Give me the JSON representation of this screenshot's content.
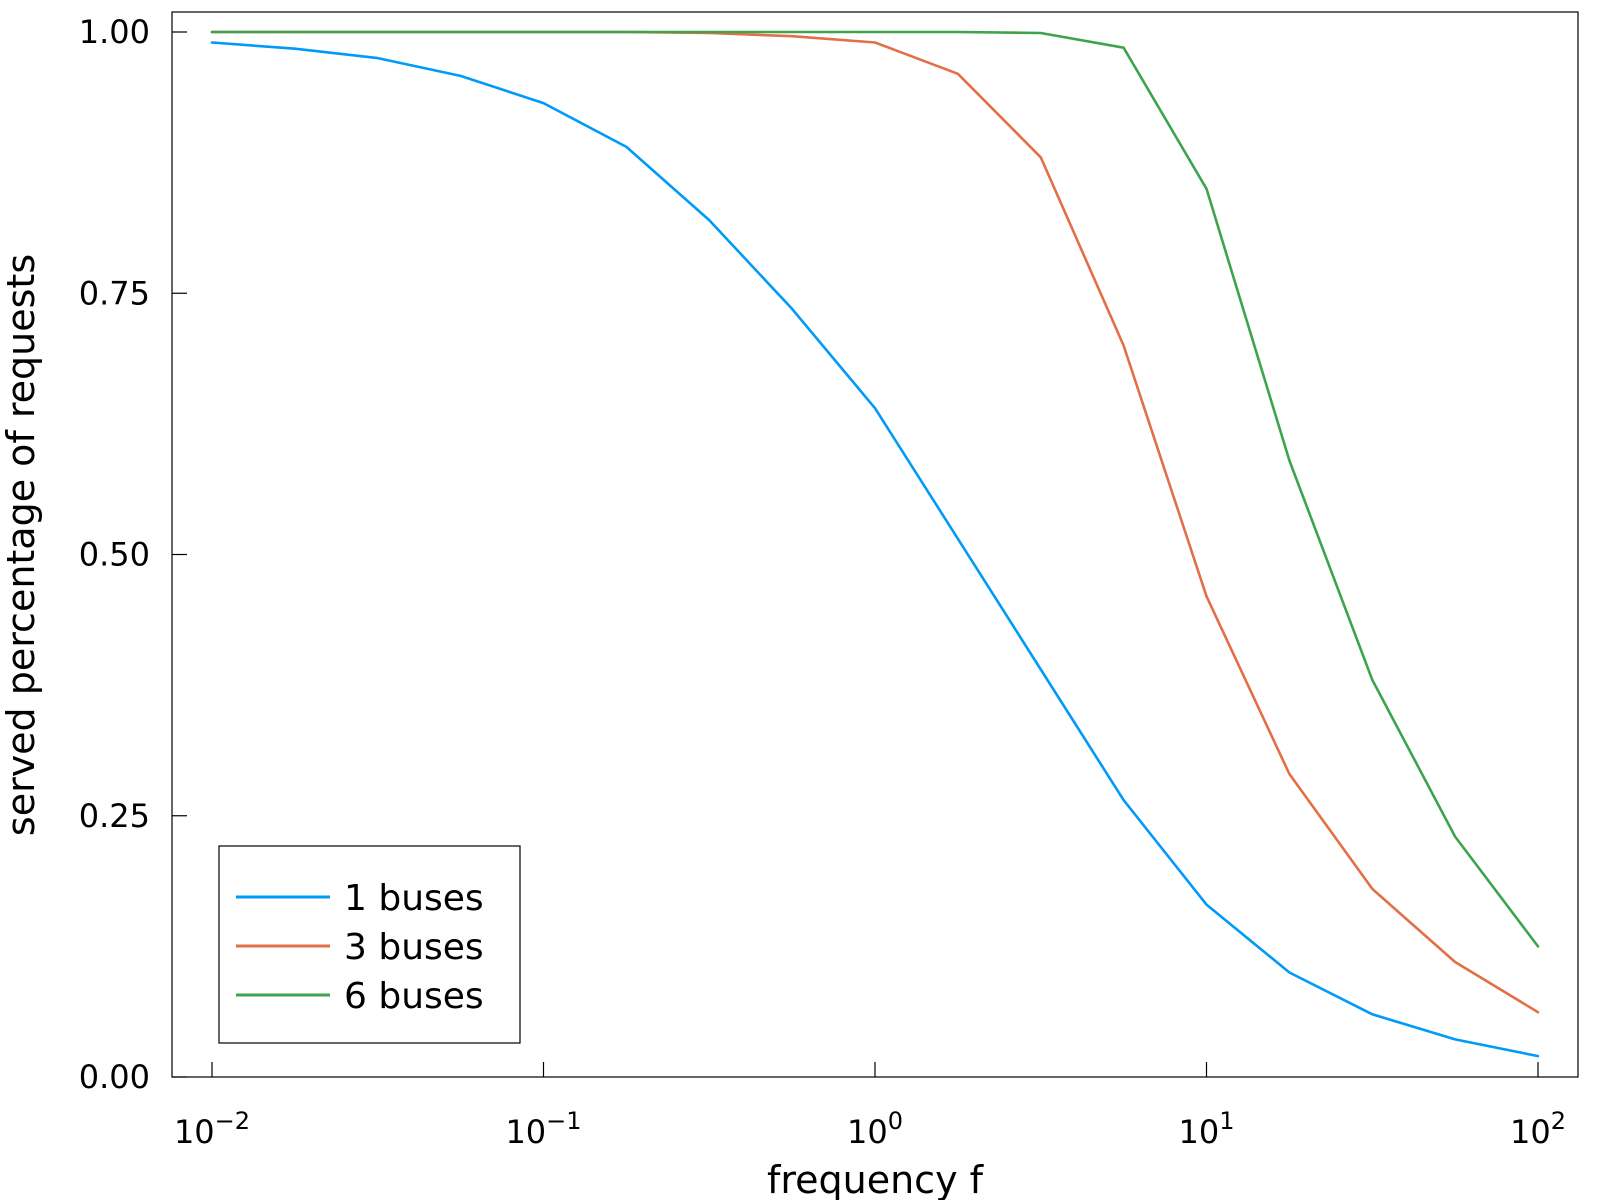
{
  "chart_data": {
    "type": "line",
    "title": "",
    "xlabel": "frequency f",
    "ylabel": "served percentage of requests",
    "x_scale": "log",
    "xlim": [
      0.01,
      100
    ],
    "ylim": [
      0,
      1
    ],
    "grid": false,
    "legend_position": "bottom-left",
    "x_ticks": [
      {
        "value": 0.01,
        "base": "10",
        "exp": "−2"
      },
      {
        "value": 0.1,
        "base": "10",
        "exp": "−1"
      },
      {
        "value": 1,
        "base": "10",
        "exp": "0"
      },
      {
        "value": 10,
        "base": "10",
        "exp": "1"
      },
      {
        "value": 100,
        "base": "10",
        "exp": "2"
      }
    ],
    "y_ticks": [
      {
        "value": 0,
        "label": "0.00"
      },
      {
        "value": 0.25,
        "label": "0.25"
      },
      {
        "value": 0.5,
        "label": "0.50"
      },
      {
        "value": 0.75,
        "label": "0.75"
      },
      {
        "value": 1,
        "label": "1.00"
      }
    ],
    "x": [
      0.01,
      0.0178,
      0.0316,
      0.0562,
      0.1,
      0.1778,
      0.3162,
      0.5623,
      1.0,
      1.7783,
      3.1623,
      5.6234,
      10.0,
      17.7828,
      31.6228,
      56.2341,
      100.0
    ],
    "series": [
      {
        "name": "1 buses",
        "color": "#009AF9",
        "values": [
          0.99,
          0.984,
          0.975,
          0.958,
          0.932,
          0.89,
          0.82,
          0.735,
          0.64,
          0.515,
          0.39,
          0.265,
          0.165,
          0.1,
          0.06,
          0.036,
          0.02
        ]
      },
      {
        "name": "3 buses",
        "color": "#E26F46",
        "values": [
          1.0,
          1.0,
          1.0,
          1.0,
          1.0,
          1.0,
          0.999,
          0.996,
          0.99,
          0.96,
          0.88,
          0.7,
          0.46,
          0.29,
          0.18,
          0.11,
          0.062
        ]
      },
      {
        "name": "6 buses",
        "color": "#3DA44D",
        "values": [
          1.0,
          1.0,
          1.0,
          1.0,
          1.0,
          1.0,
          1.0,
          1.0,
          1.0,
          1.0,
          0.999,
          0.985,
          0.85,
          0.59,
          0.38,
          0.23,
          0.125
        ]
      }
    ]
  }
}
